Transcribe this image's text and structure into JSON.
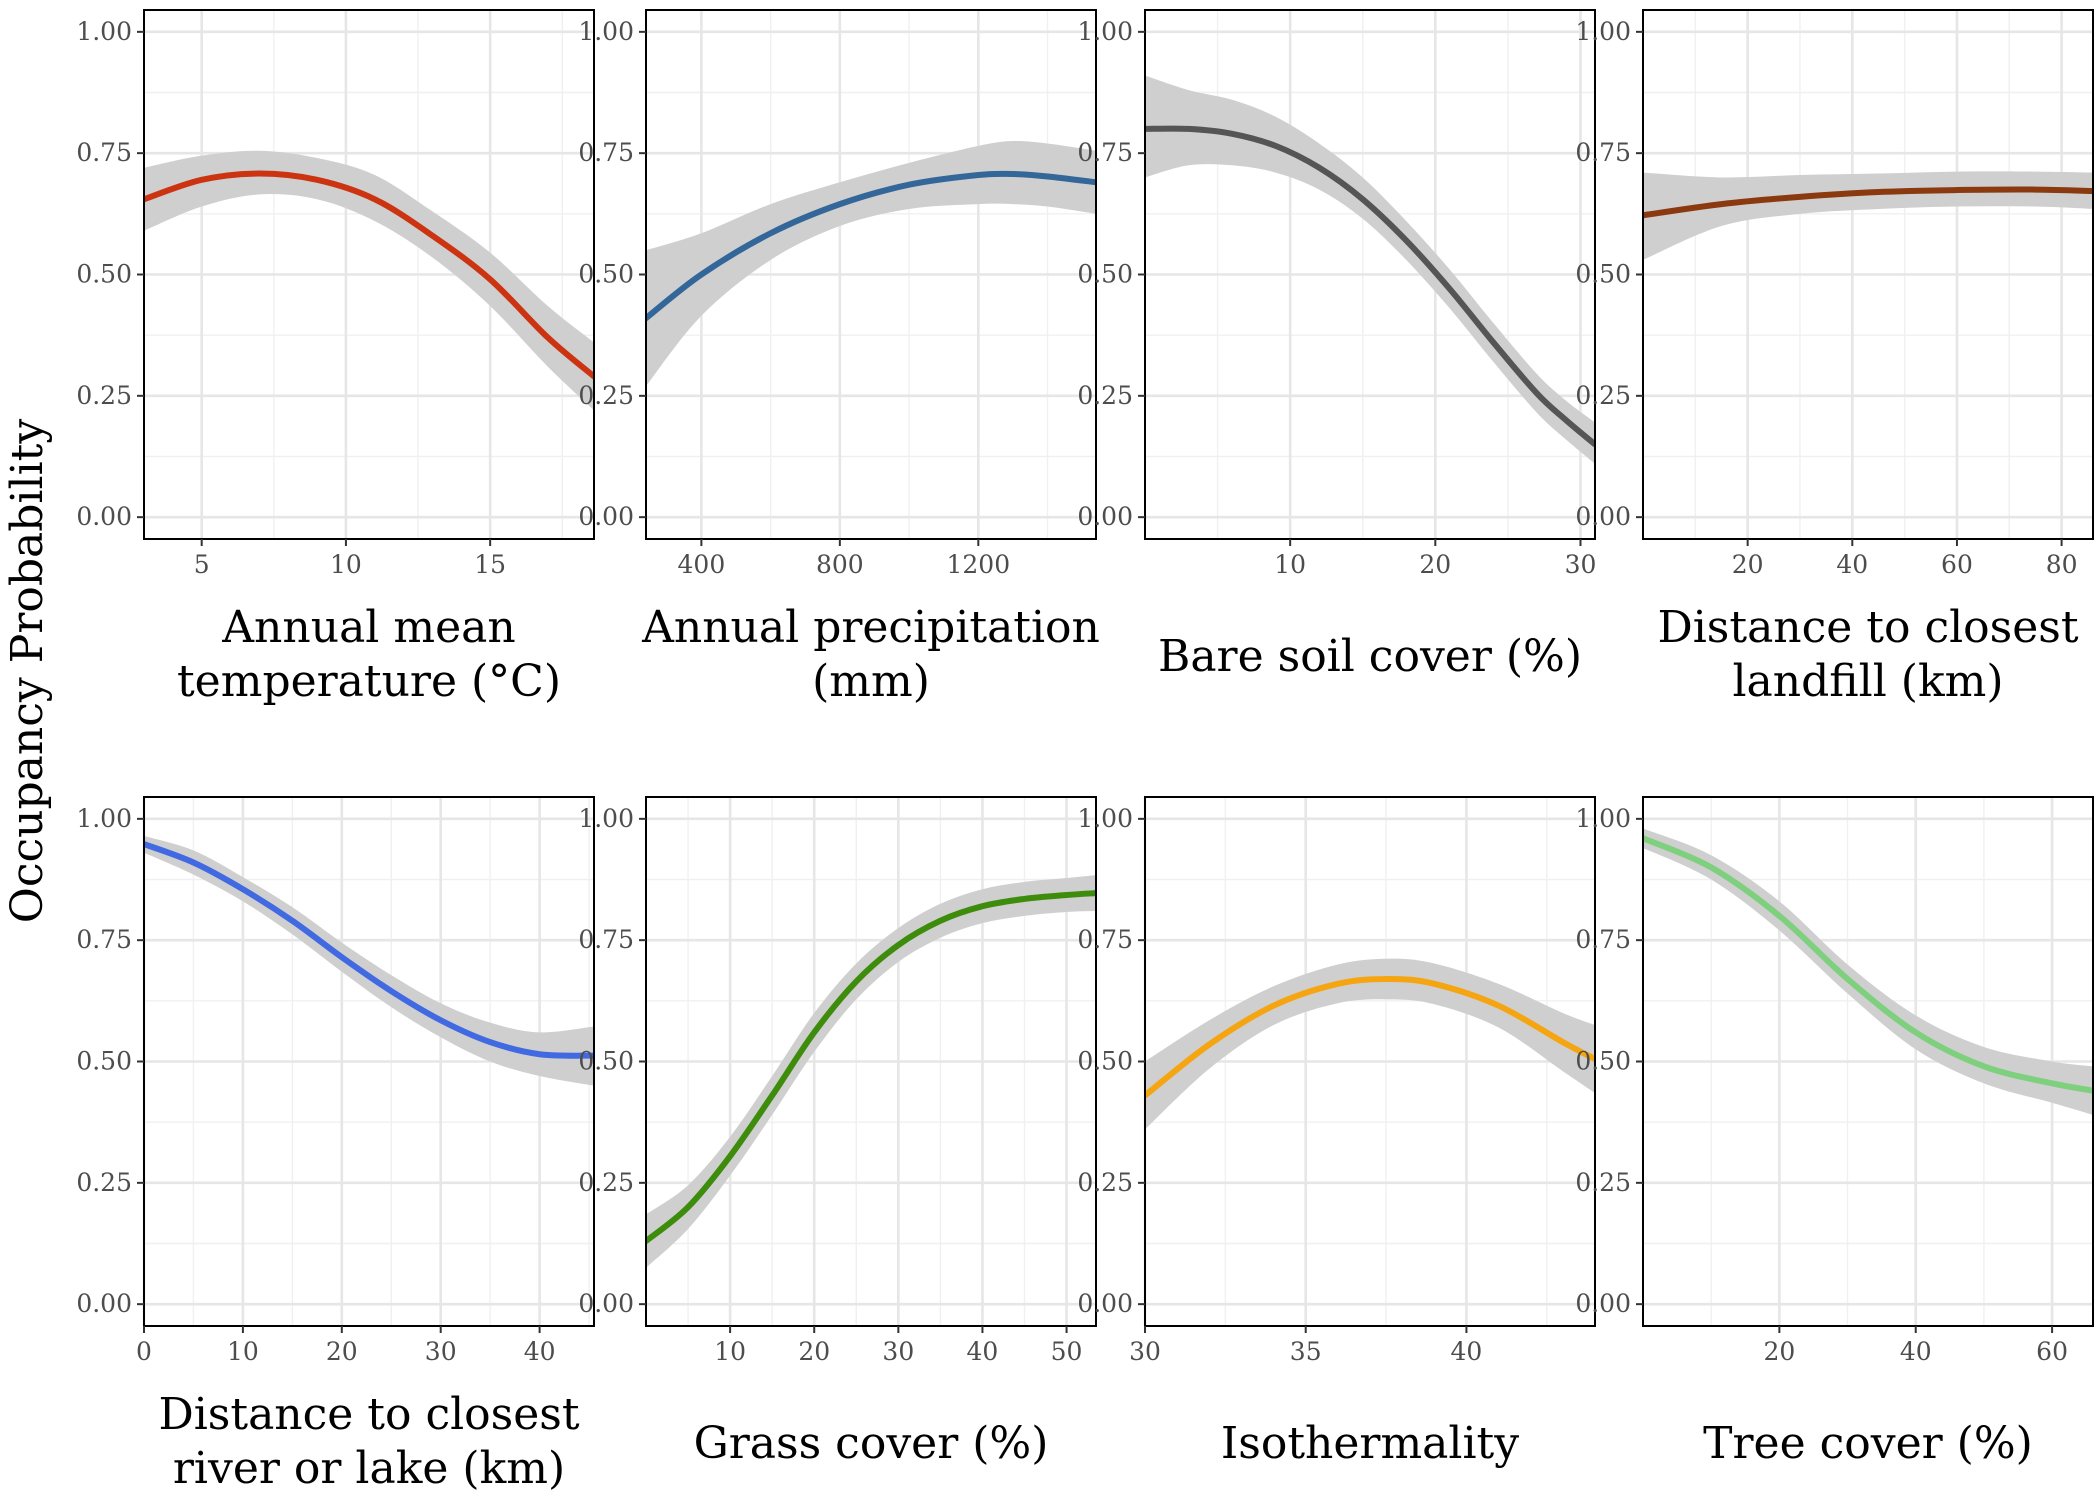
{
  "figure": {
    "ylabel": "Occupancy Probability"
  },
  "chart_data": [
    {
      "type": "line",
      "xlabel": [
        "Annual mean",
        "temperature (°C)"
      ],
      "ylabel": "Occupancy Probability",
      "color": "#CC3311",
      "xlim": [
        3,
        18.6
      ],
      "ylim": [
        0,
        1
      ],
      "xticks": [
        5,
        10,
        15
      ],
      "yticks": [
        "0.00",
        "0.25",
        "0.50",
        "0.75",
        "1.00"
      ],
      "x": [
        3,
        5,
        7,
        9,
        11,
        13,
        15,
        17,
        18.6
      ],
      "y": [
        0.655,
        0.695,
        0.708,
        0.695,
        0.655,
        0.58,
        0.49,
        0.37,
        0.29
      ],
      "lower": [
        0.59,
        0.64,
        0.665,
        0.655,
        0.61,
        0.535,
        0.435,
        0.31,
        0.22
      ],
      "upper": [
        0.72,
        0.745,
        0.755,
        0.74,
        0.705,
        0.63,
        0.545,
        0.435,
        0.36
      ]
    },
    {
      "type": "line",
      "xlabel": [
        "Annual precipitation",
        "(mm)"
      ],
      "color": "#336699",
      "xlim": [
        240,
        1540
      ],
      "ylim": [
        0,
        1
      ],
      "xticks": [
        400,
        800,
        1200
      ],
      "yticks": [
        "0.00",
        "0.25",
        "0.50",
        "0.75",
        "1.00"
      ],
      "x": [
        240,
        400,
        600,
        800,
        1000,
        1200,
        1300,
        1400,
        1540
      ],
      "y": [
        0.41,
        0.5,
        0.585,
        0.645,
        0.685,
        0.705,
        0.707,
        0.702,
        0.69
      ],
      "lower": [
        0.27,
        0.415,
        0.53,
        0.6,
        0.635,
        0.645,
        0.645,
        0.64,
        0.625
      ],
      "upper": [
        0.55,
        0.585,
        0.645,
        0.69,
        0.73,
        0.765,
        0.775,
        0.77,
        0.755
      ]
    },
    {
      "type": "line",
      "xlabel": [
        "Bare soil cover (%)"
      ],
      "color": "#555555",
      "xlim": [
        0,
        31
      ],
      "ylim": [
        0,
        1
      ],
      "xticks": [
        10,
        20,
        30
      ],
      "yticks": [
        "0.00",
        "0.25",
        "0.50",
        "0.75",
        "1.00"
      ],
      "x": [
        0,
        3,
        6,
        9,
        12,
        15,
        18,
        21,
        24,
        27,
        29,
        31
      ],
      "y": [
        0.8,
        0.8,
        0.79,
        0.765,
        0.72,
        0.655,
        0.57,
        0.47,
        0.36,
        0.255,
        0.2,
        0.15
      ],
      "lower": [
        0.7,
        0.725,
        0.725,
        0.71,
        0.675,
        0.615,
        0.53,
        0.43,
        0.32,
        0.215,
        0.16,
        0.11
      ],
      "upper": [
        0.91,
        0.88,
        0.86,
        0.825,
        0.77,
        0.7,
        0.61,
        0.51,
        0.4,
        0.295,
        0.24,
        0.195
      ]
    },
    {
      "type": "line",
      "xlabel": [
        "Distance to closest",
        "landfill (km)"
      ],
      "color": "#8B3A0F",
      "xlim": [
        0,
        86
      ],
      "ylim": [
        0,
        1
      ],
      "xticks": [
        20,
        40,
        60,
        80
      ],
      "yticks": [
        "0.00",
        "0.25",
        "0.50",
        "0.75",
        "1.00"
      ],
      "x": [
        0,
        15,
        30,
        45,
        60,
        75,
        86
      ],
      "y": [
        0.622,
        0.645,
        0.66,
        0.67,
        0.674,
        0.675,
        0.672
      ],
      "lower": [
        0.53,
        0.6,
        0.625,
        0.635,
        0.64,
        0.64,
        0.635
      ],
      "upper": [
        0.71,
        0.7,
        0.705,
        0.708,
        0.712,
        0.712,
        0.71
      ]
    },
    {
      "type": "line",
      "xlabel": [
        "Distance to closest",
        "river or lake (km)"
      ],
      "color": "#4169E1",
      "xlim": [
        0,
        45.5
      ],
      "ylim": [
        0,
        1
      ],
      "xticks": [
        0,
        10,
        20,
        30,
        40
      ],
      "yticks": [
        "0.00",
        "0.25",
        "0.50",
        "0.75",
        "1.00"
      ],
      "x": [
        0,
        5,
        10,
        15,
        20,
        25,
        30,
        35,
        40,
        45.5
      ],
      "y": [
        0.948,
        0.91,
        0.855,
        0.79,
        0.715,
        0.645,
        0.585,
        0.54,
        0.515,
        0.512
      ],
      "lower": [
        0.93,
        0.885,
        0.83,
        0.762,
        0.685,
        0.612,
        0.55,
        0.5,
        0.47,
        0.45
      ],
      "upper": [
        0.965,
        0.935,
        0.88,
        0.818,
        0.745,
        0.678,
        0.62,
        0.58,
        0.56,
        0.572
      ]
    },
    {
      "type": "line",
      "xlabel": [
        "Grass cover (%)"
      ],
      "color": "#3D8C0C",
      "xlim": [
        0,
        53.5
      ],
      "ylim": [
        0,
        1
      ],
      "xticks": [
        10,
        20,
        30,
        40,
        50
      ],
      "yticks": [
        "0.00",
        "0.25",
        "0.50",
        "0.75",
        "1.00"
      ],
      "x": [
        0,
        5,
        10,
        15,
        20,
        25,
        30,
        35,
        40,
        45,
        50,
        53.5
      ],
      "y": [
        0.13,
        0.2,
        0.305,
        0.43,
        0.56,
        0.665,
        0.74,
        0.79,
        0.82,
        0.835,
        0.843,
        0.847
      ],
      "lower": [
        0.075,
        0.155,
        0.265,
        0.39,
        0.52,
        0.628,
        0.705,
        0.755,
        0.785,
        0.8,
        0.808,
        0.81
      ],
      "upper": [
        0.185,
        0.245,
        0.345,
        0.47,
        0.6,
        0.702,
        0.775,
        0.825,
        0.855,
        0.87,
        0.878,
        0.884
      ]
    },
    {
      "type": "line",
      "xlabel": [
        "Isothermality"
      ],
      "color": "#F5A511",
      "xlim": [
        30,
        44
      ],
      "ylim": [
        0,
        1
      ],
      "xticks": [
        30,
        35,
        40
      ],
      "yticks": [
        "0.00",
        "0.25",
        "0.50",
        "0.75",
        "1.00"
      ],
      "x": [
        30,
        32,
        34,
        36,
        37.6,
        39,
        41,
        43,
        44
      ],
      "y": [
        0.43,
        0.535,
        0.615,
        0.66,
        0.67,
        0.66,
        0.615,
        0.54,
        0.505
      ],
      "lower": [
        0.36,
        0.485,
        0.575,
        0.62,
        0.628,
        0.618,
        0.57,
        0.48,
        0.435
      ],
      "upper": [
        0.5,
        0.585,
        0.655,
        0.7,
        0.712,
        0.702,
        0.66,
        0.6,
        0.575
      ]
    },
    {
      "type": "line",
      "xlabel": [
        "Tree cover (%)"
      ],
      "color": "#7ECF7E",
      "xlim": [
        0,
        66
      ],
      "ylim": [
        0,
        1
      ],
      "xticks": [
        20,
        40,
        60
      ],
      "yticks": [
        "0.00",
        "0.25",
        "0.50",
        "0.75",
        "1.00"
      ],
      "x": [
        0,
        10,
        20,
        30,
        40,
        50,
        60,
        66
      ],
      "y": [
        0.96,
        0.9,
        0.8,
        0.67,
        0.56,
        0.49,
        0.455,
        0.44
      ],
      "lower": [
        0.94,
        0.875,
        0.77,
        0.64,
        0.525,
        0.455,
        0.415,
        0.39
      ],
      "upper": [
        0.98,
        0.925,
        0.83,
        0.7,
        0.595,
        0.53,
        0.5,
        0.49
      ]
    }
  ]
}
